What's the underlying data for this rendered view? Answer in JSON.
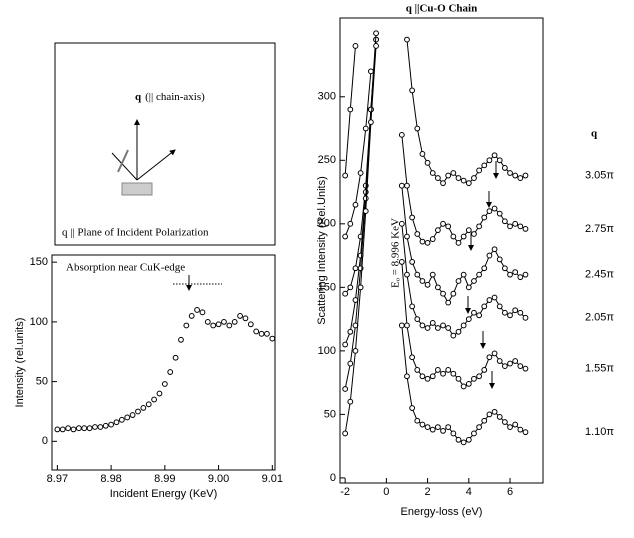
{
  "inset": {
    "label_symbol": "q",
    "label": "(|| chain-axis)",
    "caption": "q || Plane of Incident Polarization"
  },
  "chart_data": [
    {
      "type": "scatter",
      "annotation": "Absorption near CuK-edge",
      "x_label": "Incident Energy (KeV)",
      "y_label": "Intensity (rel.units)",
      "x": [
        8.97,
        8.971,
        8.972,
        8.973,
        8.974,
        8.975,
        8.976,
        8.977,
        8.978,
        8.979,
        8.98,
        8.981,
        8.982,
        8.983,
        8.984,
        8.985,
        8.986,
        8.987,
        8.988,
        8.989,
        8.99,
        8.991,
        8.992,
        8.993,
        8.994,
        8.995,
        8.996,
        8.997,
        8.998,
        8.999,
        9.0,
        9.001,
        9.002,
        9.003,
        9.004,
        9.005,
        9.006,
        9.007,
        9.008,
        9.009,
        9.01
      ],
      "values": [
        10,
        10,
        11,
        10,
        11,
        11,
        11,
        12,
        12,
        13,
        14,
        16,
        18,
        20,
        22,
        25,
        28,
        31,
        35,
        40,
        48,
        58,
        70,
        85,
        97,
        105,
        110,
        108,
        100,
        97,
        98,
        100,
        97,
        100,
        105,
        103,
        98,
        92,
        90,
        90,
        86
      ],
      "color": "#000000",
      "xlim": [
        8.969,
        9.0105
      ],
      "ylim": [
        -24,
        156
      ],
      "xticks": [
        8.97,
        8.98,
        8.99,
        {
          "value": 9.0,
          "label": "9.00"
        },
        9.01
      ],
      "yticks": [
        0,
        50,
        100,
        150
      ]
    },
    {
      "type": "line",
      "title": "q ||Cu-O Chain",
      "annotation": "Eₒ = 8.996 KeV",
      "x_label": "Energy-loss (eV)",
      "y_label": "Scattering Intensity (Rel.Units)",
      "legend_title": "q",
      "x": [
        -2,
        -1.75,
        -1.5,
        -1.25,
        -1,
        -0.75,
        -0.5,
        -0.25,
        0,
        0.25,
        0.5,
        0.75,
        1,
        1.25,
        1.5,
        1.75,
        2,
        2.25,
        2.5,
        2.75,
        3,
        3.25,
        3.5,
        3.75,
        4,
        4.25,
        4.5,
        4.75,
        5,
        5.25,
        5.5,
        5.75,
        6,
        6.25,
        6.5,
        6.75
      ],
      "series": [
        {
          "name": "3.05π",
          "color": "#000000",
          "values": [
            238,
            290,
            340,
            null,
            null,
            null,
            null,
            null,
            null,
            null,
            null,
            null,
            345,
            305,
            275,
            255,
            248,
            240,
            236,
            232,
            238,
            240,
            236,
            234,
            232,
            236,
            242,
            246,
            250,
            254,
            250,
            244,
            240,
            238,
            236,
            238
          ]
        },
        {
          "name": "2.75π",
          "color": "#000000",
          "values": [
            190,
            200,
            215,
            240,
            275,
            320,
            null,
            null,
            null,
            null,
            null,
            270,
            230,
            205,
            192,
            186,
            185,
            188,
            195,
            200,
            198,
            190,
            185,
            190,
            195,
            192,
            198,
            205,
            210,
            212,
            208,
            202,
            198,
            200,
            198,
            196
          ]
        },
        {
          "name": "2.45π",
          "color": "#000000",
          "values": [
            145,
            150,
            165,
            190,
            230,
            290,
            345,
            null,
            null,
            null,
            null,
            230,
            190,
            170,
            160,
            155,
            152,
            160,
            150,
            145,
            138,
            145,
            155,
            160,
            150,
            155,
            160,
            165,
            175,
            180,
            172,
            165,
            160,
            162,
            158,
            160
          ]
        },
        {
          "name": "2.05π",
          "color": "#000000",
          "values": [
            105,
            115,
            140,
            175,
            225,
            290,
            345,
            null,
            null,
            null,
            null,
            200,
            160,
            135,
            125,
            120,
            118,
            122,
            118,
            120,
            118,
            112,
            115,
            120,
            125,
            130,
            128,
            135,
            140,
            142,
            135,
            130,
            128,
            132,
            130,
            126
          ]
        },
        {
          "name": "1.55π",
          "color": "#000000",
          "values": [
            70,
            90,
            120,
            165,
            220,
            290,
            350,
            null,
            null,
            null,
            null,
            170,
            120,
            95,
            85,
            80,
            78,
            80,
            85,
            82,
            85,
            82,
            78,
            72,
            74,
            78,
            80,
            85,
            95,
            98,
            92,
            88,
            90,
            92,
            88,
            86
          ]
        },
        {
          "name": "1.10π",
          "color": "#000000",
          "values": [
            35,
            60,
            100,
            150,
            210,
            280,
            340,
            null,
            null,
            null,
            null,
            120,
            80,
            55,
            45,
            42,
            40,
            38,
            40,
            37,
            40,
            35,
            30,
            28,
            30,
            35,
            40,
            45,
            50,
            52,
            48,
            44,
            40,
            42,
            38,
            36
          ]
        }
      ],
      "xlim": [
        -2.25,
        7.6
      ],
      "ylim": [
        -4,
        362
      ],
      "xticks": [
        -2,
        0,
        2,
        4,
        6
      ],
      "yticks": [
        0,
        50,
        100,
        150,
        200,
        250,
        300
      ]
    }
  ]
}
